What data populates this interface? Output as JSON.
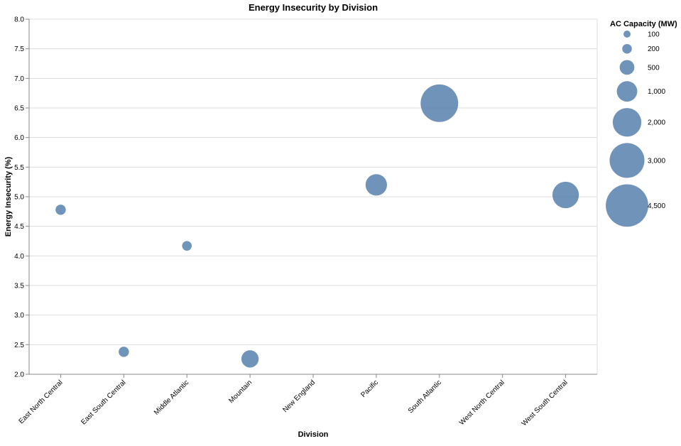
{
  "chart_data": {
    "type": "scatter",
    "title": "Energy Insecurity by Division",
    "xlabel": "Division",
    "ylabel": "Energy Insecurity (%)",
    "categories": [
      "East North Central",
      "East South Central",
      "Middle Atlantic",
      "Mountain",
      "New England",
      "Pacific",
      "South Atlantic",
      "West North Central",
      "West South Central"
    ],
    "ylim": [
      2.0,
      8.0
    ],
    "yticks": [
      "2.0",
      "2.5",
      "3.0",
      "3.5",
      "4.0",
      "4.5",
      "5.0",
      "5.5",
      "6.0",
      "6.5",
      "7.0",
      "7.5",
      "8.0"
    ],
    "grid": true,
    "color": "#4c78a8",
    "points": [
      {
        "category": "East North Central",
        "y": 4.78,
        "size": 230
      },
      {
        "category": "East South Central",
        "y": 2.38,
        "size": 230
      },
      {
        "category": "Middle Atlantic",
        "y": 4.17,
        "size": 200
      },
      {
        "category": "Mountain",
        "y": 2.26,
        "size": 700
      },
      {
        "category": "Pacific",
        "y": 5.2,
        "size": 1100
      },
      {
        "category": "South Atlantic",
        "y": 6.58,
        "size": 3500
      },
      {
        "category": "West South Central",
        "y": 5.03,
        "size": 1700
      }
    ],
    "legend": {
      "title": "AC Capacity (MW)",
      "placement": "right",
      "entries": [
        {
          "label": "100",
          "value": 100
        },
        {
          "label": "200",
          "value": 200
        },
        {
          "label": "500",
          "value": 500
        },
        {
          "label": "1,000",
          "value": 1000
        },
        {
          "label": "2,000",
          "value": 2000
        },
        {
          "label": "3,000",
          "value": 3000
        },
        {
          "label": "4,500",
          "value": 4500
        }
      ]
    }
  }
}
